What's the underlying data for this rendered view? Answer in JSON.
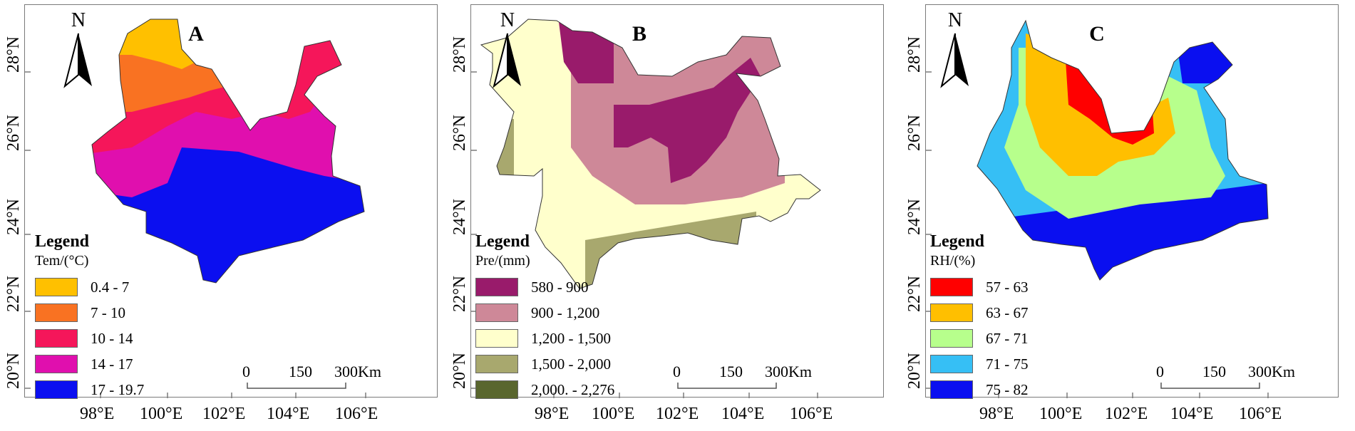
{
  "panels": [
    {
      "letter": "A",
      "north": "N",
      "legend_title": "Legend",
      "legend_subtitle": "Tem/(°C)",
      "legend": [
        {
          "label": "0.4 - 7",
          "color": "#FFC000"
        },
        {
          "label": "7 - 10",
          "color": "#F97222"
        },
        {
          "label": "10 - 14",
          "color": "#F5165A"
        },
        {
          "label": "14 - 17",
          "color": "#E00FAE"
        },
        {
          "label": "17 - 19.7",
          "color": "#0B0FF0"
        }
      ],
      "scale": {
        "zero": "0",
        "mid": "150",
        "end": "300Km"
      }
    },
    {
      "letter": "B",
      "north": "N",
      "legend_title": "Legend",
      "legend_subtitle": "Pre/(mm)",
      "legend": [
        {
          "label": "580 - 900",
          "color": "#991B6B"
        },
        {
          "label": "900 - 1,200",
          "color": "#CE8898"
        },
        {
          "label": "1,200 - 1,500",
          "color": "#FFFFCC"
        },
        {
          "label": "1,500 - 2,000",
          "color": "#A8A86E"
        },
        {
          "label": "2,000. - 2,276",
          "color": "#59662E"
        }
      ],
      "scale": {
        "zero": "0",
        "mid": "150",
        "end": "300Km"
      }
    },
    {
      "letter": "C",
      "north": "N",
      "legend_title": "Legend",
      "legend_subtitle": "RH/(%)",
      "legend": [
        {
          "label": "57 - 63",
          "color": "#FF0000"
        },
        {
          "label": "63 - 67",
          "color": "#FFBF00"
        },
        {
          "label": "67 - 71",
          "color": "#B7FF8C"
        },
        {
          "label": "71 - 75",
          "color": "#36BFF5"
        },
        {
          "label": "75 - 82",
          "color": "#0A0FF0"
        }
      ],
      "scale": {
        "zero": "0",
        "mid": "150",
        "end": "300Km"
      }
    }
  ],
  "y_ticks": [
    "20°N",
    "22°N",
    "24°N",
    "26°N",
    "28°N"
  ],
  "x_ticks": [
    "98°E",
    "100°E",
    "102°E",
    "104°E",
    "106°E"
  ]
}
